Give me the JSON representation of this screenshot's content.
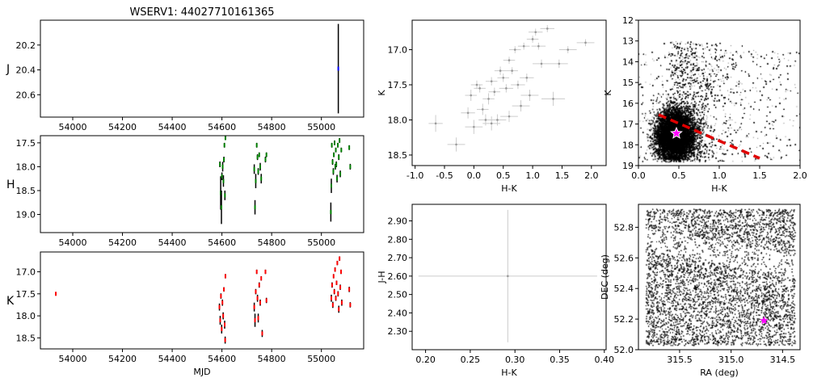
{
  "chart_data": [
    {
      "id": "lc_j",
      "type": "scatter",
      "title": "WSERV1: 44027710161365",
      "ylabel": "J",
      "xlabel": "",
      "inverted_y": true,
      "xlim": [
        53870,
        55170
      ],
      "ylim": [
        20.0,
        20.78
      ],
      "xticks": [
        54000,
        54200,
        54400,
        54600,
        54800,
        55000
      ],
      "yticks": [
        20.2,
        20.4,
        20.6
      ],
      "color": "#0000ff",
      "err_color": "#000000",
      "points": [
        [
          55068,
          20.39,
          0.36
        ]
      ]
    },
    {
      "id": "lc_h",
      "type": "scatter",
      "title": "",
      "ylabel": "H",
      "xlabel": "",
      "inverted_y": true,
      "xlim": [
        53870,
        55170
      ],
      "ylim": [
        17.35,
        19.38
      ],
      "xticks": [
        54000,
        54200,
        54400,
        54600,
        54800,
        55000
      ],
      "yticks": [
        17.5,
        18.0,
        18.5,
        19.0
      ],
      "color": "#008000",
      "err_color": "#000000",
      "points": [
        [
          54592,
          17.95,
          0.06
        ],
        [
          54595,
          18.55,
          0.35
        ],
        [
          54598,
          18.85,
          0.35
        ],
        [
          54600,
          18.2,
          0.08
        ],
        [
          54603,
          18.0,
          0.1
        ],
        [
          54606,
          18.3,
          0.12
        ],
        [
          54608,
          17.85,
          0.06
        ],
        [
          54610,
          17.55,
          0.05
        ],
        [
          54612,
          18.6,
          0.1
        ],
        [
          54614,
          17.4,
          0.04
        ],
        [
          54730,
          18.05,
          0.1
        ],
        [
          54733,
          18.85,
          0.15
        ],
        [
          54736,
          18.3,
          0.15
        ],
        [
          54740,
          17.55,
          0.05
        ],
        [
          54743,
          17.8,
          0.06
        ],
        [
          54746,
          18.1,
          0.07
        ],
        [
          54750,
          17.75,
          0.05
        ],
        [
          54754,
          18.0,
          0.08
        ],
        [
          54758,
          18.25,
          0.1
        ],
        [
          54775,
          17.85,
          0.06
        ],
        [
          54779,
          17.75,
          0.05
        ],
        [
          55038,
          18.95,
          0.2
        ],
        [
          55040,
          18.4,
          0.15
        ],
        [
          55042,
          17.55,
          0.05
        ],
        [
          55045,
          17.9,
          0.06
        ],
        [
          55048,
          18.1,
          0.07
        ],
        [
          55050,
          17.75,
          0.05
        ],
        [
          55053,
          17.5,
          0.05
        ],
        [
          55056,
          18.0,
          0.06
        ],
        [
          55058,
          17.65,
          0.05
        ],
        [
          55060,
          17.95,
          0.06
        ],
        [
          55063,
          18.25,
          0.08
        ],
        [
          55066,
          17.55,
          0.05
        ],
        [
          55070,
          17.8,
          0.06
        ],
        [
          55073,
          17.45,
          0.05
        ],
        [
          55076,
          18.15,
          0.07
        ],
        [
          55080,
          17.65,
          0.05
        ],
        [
          55112,
          17.6,
          0.05
        ],
        [
          55116,
          18.0,
          0.06
        ]
      ]
    },
    {
      "id": "lc_k",
      "type": "scatter",
      "title": "",
      "ylabel": "K",
      "xlabel": "MJD",
      "inverted_y": true,
      "xlim": [
        53870,
        55170
      ],
      "ylim": [
        16.55,
        18.75
      ],
      "xticks": [
        54000,
        54200,
        54400,
        54600,
        54800,
        55000
      ],
      "yticks": [
        17.0,
        17.5,
        18.0,
        18.5
      ],
      "color": "#ff0000",
      "err_color": "#000000",
      "points": [
        [
          53932,
          17.5,
          0.04
        ],
        [
          54590,
          17.8,
          0.08
        ],
        [
          54593,
          18.1,
          0.1
        ],
        [
          54596,
          17.55,
          0.06
        ],
        [
          54599,
          18.3,
          0.1
        ],
        [
          54602,
          17.7,
          0.07
        ],
        [
          54605,
          18.0,
          0.08
        ],
        [
          54608,
          17.4,
          0.05
        ],
        [
          54611,
          18.2,
          0.09
        ],
        [
          54613,
          18.55,
          0.08
        ],
        [
          54614,
          17.1,
          0.05
        ],
        [
          54730,
          17.8,
          0.1
        ],
        [
          54733,
          18.1,
          0.15
        ],
        [
          54736,
          17.45,
          0.06
        ],
        [
          54740,
          17.0,
          0.05
        ],
        [
          54743,
          17.6,
          0.08
        ],
        [
          54746,
          18.05,
          0.1
        ],
        [
          54750,
          17.3,
          0.06
        ],
        [
          54754,
          17.7,
          0.07
        ],
        [
          54758,
          17.15,
          0.05
        ],
        [
          54762,
          18.4,
          0.08
        ],
        [
          54775,
          17.0,
          0.05
        ],
        [
          54779,
          17.65,
          0.06
        ],
        [
          55040,
          17.6,
          0.08
        ],
        [
          55043,
          17.3,
          0.06
        ],
        [
          55046,
          17.75,
          0.07
        ],
        [
          55049,
          17.1,
          0.05
        ],
        [
          55052,
          17.45,
          0.06
        ],
        [
          55055,
          16.95,
          0.05
        ],
        [
          55058,
          17.6,
          0.06
        ],
        [
          55061,
          17.25,
          0.05
        ],
        [
          55064,
          16.8,
          0.05
        ],
        [
          55067,
          17.5,
          0.06
        ],
        [
          55070,
          17.85,
          0.08
        ],
        [
          55073,
          16.7,
          0.05
        ],
        [
          55076,
          17.35,
          0.06
        ],
        [
          55079,
          17.0,
          0.05
        ],
        [
          55082,
          17.7,
          0.07
        ],
        [
          55112,
          17.4,
          0.06
        ],
        [
          55116,
          17.75,
          0.06
        ]
      ]
    },
    {
      "id": "cmd_small",
      "type": "scatter",
      "title": "",
      "xlabel": "H-K",
      "ylabel": "K",
      "inverted_y": true,
      "xlim": [
        -1.05,
        2.25
      ],
      "ylim": [
        16.58,
        18.65
      ],
      "xticks": [
        -1.0,
        -0.5,
        0.0,
        0.5,
        1.0,
        1.5,
        2.0
      ],
      "yticks": [
        17.0,
        17.5,
        18.0,
        18.5
      ],
      "color": "#999999",
      "points": [
        [
          -0.65,
          18.05,
          0.12,
          0.12
        ],
        [
          -0.3,
          18.35,
          0.15,
          0.1
        ],
        [
          -0.1,
          17.9,
          0.12,
          0.08
        ],
        [
          -0.05,
          17.65,
          0.1,
          0.08
        ],
        [
          0.05,
          17.5,
          0.1,
          0.06
        ],
        [
          0.1,
          17.55,
          0.1,
          0.06
        ],
        [
          0.15,
          17.85,
          0.1,
          0.08
        ],
        [
          0.2,
          18.0,
          0.12,
          0.08
        ],
        [
          0.25,
          17.7,
          0.1,
          0.08
        ],
        [
          0.3,
          17.45,
          0.1,
          0.06
        ],
        [
          0.35,
          17.6,
          0.1,
          0.06
        ],
        [
          0.4,
          18.0,
          0.15,
          0.08
        ],
        [
          0.45,
          17.3,
          0.1,
          0.06
        ],
        [
          0.5,
          17.4,
          0.1,
          0.06
        ],
        [
          0.55,
          17.55,
          0.12,
          0.06
        ],
        [
          0.6,
          17.15,
          0.1,
          0.05
        ],
        [
          0.65,
          17.3,
          0.1,
          0.05
        ],
        [
          0.7,
          17.0,
          0.1,
          0.05
        ],
        [
          0.75,
          17.5,
          0.12,
          0.06
        ],
        [
          0.8,
          17.8,
          0.15,
          0.08
        ],
        [
          0.85,
          16.95,
          0.1,
          0.05
        ],
        [
          0.9,
          17.4,
          0.12,
          0.06
        ],
        [
          0.95,
          17.65,
          0.15,
          0.08
        ],
        [
          1.0,
          16.85,
          0.1,
          0.05
        ],
        [
          1.05,
          16.75,
          0.12,
          0.05
        ],
        [
          1.1,
          16.95,
          0.12,
          0.05
        ],
        [
          1.15,
          17.2,
          0.15,
          0.06
        ],
        [
          1.25,
          16.7,
          0.12,
          0.05
        ],
        [
          1.35,
          17.7,
          0.2,
          0.1
        ],
        [
          1.45,
          17.2,
          0.15,
          0.06
        ],
        [
          1.6,
          17.0,
          0.15,
          0.05
        ],
        [
          1.9,
          16.9,
          0.15,
          0.05
        ],
        [
          0.6,
          17.95,
          0.15,
          0.08
        ],
        [
          0.0,
          18.1,
          0.15,
          0.1
        ],
        [
          0.3,
          18.05,
          0.15,
          0.1
        ]
      ]
    },
    {
      "id": "cmd_field",
      "type": "scatter",
      "title": "",
      "xlabel": "H-K",
      "ylabel": "K",
      "inverted_y": true,
      "xlim": [
        0.0,
        2.0
      ],
      "ylim": [
        12,
        19
      ],
      "xticks": [
        0.0,
        0.5,
        1.0,
        1.5,
        2.0
      ],
      "yticks": [
        12,
        13,
        14,
        15,
        16,
        17,
        18,
        19
      ],
      "color": "#000000",
      "line": {
        "x": [
          0.25,
          1.5
        ],
        "y": [
          16.55,
          18.65
        ],
        "color": "#e00000"
      },
      "star": {
        "x": 0.47,
        "y": 17.45,
        "color": "#ff00ff"
      }
    },
    {
      "id": "ccd",
      "type": "scatter",
      "title": "",
      "xlabel": "H-K",
      "ylabel": "J-H",
      "xlim": [
        0.185,
        0.402
      ],
      "ylim": [
        2.2,
        2.99
      ],
      "xticks": [
        0.2,
        0.25,
        0.3,
        0.35,
        0.4
      ],
      "yticks": [
        2.3,
        2.4,
        2.5,
        2.6,
        2.7,
        2.8,
        2.9
      ],
      "color": "#999999",
      "points": [
        [
          0.292,
          2.6,
          0.1,
          0.36
        ]
      ]
    },
    {
      "id": "sky",
      "type": "scatter",
      "title": "",
      "xlabel": "RA (deg)",
      "ylabel": "DEC (deg)",
      "inverted_x": true,
      "xlim": [
        315.9,
        314.33
      ],
      "ylim": [
        52.0,
        52.95
      ],
      "xticks": [
        315.5,
        315.0,
        314.5
      ],
      "yticks": [
        52.0,
        52.2,
        52.4,
        52.6,
        52.8
      ],
      "color": "#000000",
      "star": {
        "x": 314.68,
        "y": 52.19,
        "color": "#ff00ff"
      }
    }
  ]
}
